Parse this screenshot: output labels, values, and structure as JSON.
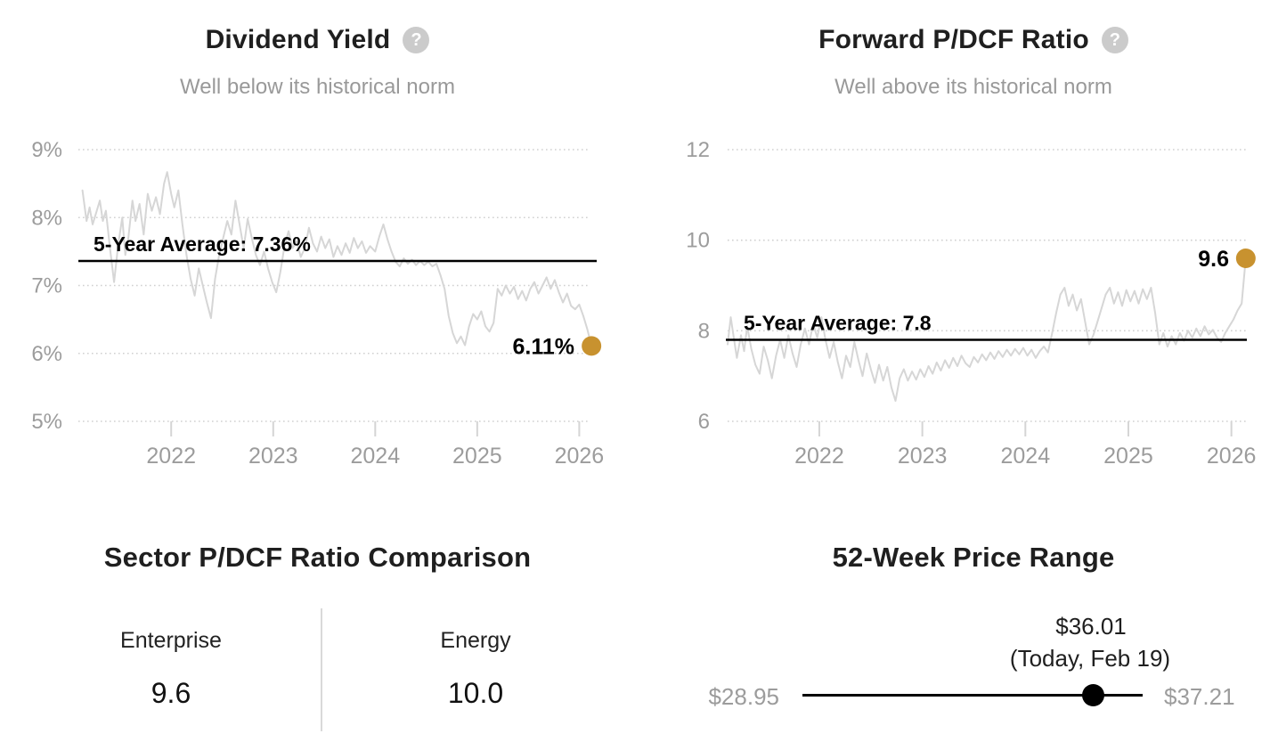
{
  "colors": {
    "accent_gold": "#C8922F",
    "series_gray": "#d6d6d6",
    "grid_gray": "#d0d0d0",
    "tick_gray": "#d5d5d5",
    "axis_text": "#9c9c9c",
    "annotation_black": "#000000"
  },
  "chart_data": [
    {
      "type": "line",
      "title": "Dividend Yield",
      "help_icon": "?",
      "subtitle": "Well below its historical norm",
      "average_label": "5-Year Average: 7.36%",
      "average_value": 7.36,
      "endpoint_label": "6.11%",
      "endpoint_value": 6.11,
      "ylim": [
        5,
        9
      ],
      "xlim": [
        2021.09,
        2026.11
      ],
      "y_ticks": [
        {
          "label": "9%",
          "value": 9
        },
        {
          "label": "8%",
          "value": 8
        },
        {
          "label": "7%",
          "value": 7
        },
        {
          "label": "6%",
          "value": 6
        },
        {
          "label": "5%",
          "value": 5
        }
      ],
      "x_ticks": [
        {
          "label": "2022",
          "value": 2022
        },
        {
          "label": "2023",
          "value": 2023
        },
        {
          "label": "2024",
          "value": 2024
        },
        {
          "label": "2025",
          "value": 2025
        },
        {
          "label": "2026",
          "value": 2026
        }
      ],
      "series": [
        [
          2021.13,
          8.4
        ],
        [
          2021.17,
          7.95
        ],
        [
          2021.2,
          8.15
        ],
        [
          2021.23,
          7.9
        ],
        [
          2021.26,
          8.05
        ],
        [
          2021.3,
          8.25
        ],
        [
          2021.33,
          7.95
        ],
        [
          2021.36,
          8.1
        ],
        [
          2021.4,
          7.55
        ],
        [
          2021.44,
          7.05
        ],
        [
          2021.48,
          7.6
        ],
        [
          2021.52,
          8.0
        ],
        [
          2021.55,
          7.45
        ],
        [
          2021.58,
          7.7
        ],
        [
          2021.62,
          8.25
        ],
        [
          2021.65,
          7.95
        ],
        [
          2021.69,
          8.2
        ],
        [
          2021.73,
          7.75
        ],
        [
          2021.77,
          8.35
        ],
        [
          2021.81,
          8.1
        ],
        [
          2021.85,
          8.3
        ],
        [
          2021.89,
          8.05
        ],
        [
          2021.93,
          8.5
        ],
        [
          2021.96,
          8.67
        ],
        [
          2022.0,
          8.35
        ],
        [
          2022.03,
          8.15
        ],
        [
          2022.07,
          8.4
        ],
        [
          2022.11,
          7.9
        ],
        [
          2022.15,
          7.45
        ],
        [
          2022.19,
          7.1
        ],
        [
          2022.23,
          6.85
        ],
        [
          2022.27,
          7.25
        ],
        [
          2022.31,
          7.0
        ],
        [
          2022.35,
          6.75
        ],
        [
          2022.39,
          6.52
        ],
        [
          2022.43,
          7.1
        ],
        [
          2022.47,
          7.45
        ],
        [
          2022.51,
          7.7
        ],
        [
          2022.55,
          7.95
        ],
        [
          2022.59,
          7.75
        ],
        [
          2022.63,
          8.25
        ],
        [
          2022.67,
          7.9
        ],
        [
          2022.71,
          7.55
        ],
        [
          2022.75,
          7.98
        ],
        [
          2022.79,
          7.7
        ],
        [
          2022.83,
          7.45
        ],
        [
          2022.87,
          7.3
        ],
        [
          2022.91,
          7.5
        ],
        [
          2022.95,
          7.25
        ],
        [
          2022.99,
          7.05
        ],
        [
          2023.03,
          6.9
        ],
        [
          2023.07,
          7.2
        ],
        [
          2023.11,
          7.58
        ],
        [
          2023.15,
          7.8
        ],
        [
          2023.19,
          7.55
        ],
        [
          2023.23,
          7.65
        ],
        [
          2023.27,
          7.42
        ],
        [
          2023.31,
          7.55
        ],
        [
          2023.35,
          7.85
        ],
        [
          2023.39,
          7.62
        ],
        [
          2023.43,
          7.5
        ],
        [
          2023.47,
          7.72
        ],
        [
          2023.51,
          7.55
        ],
        [
          2023.55,
          7.68
        ],
        [
          2023.59,
          7.42
        ],
        [
          2023.63,
          7.58
        ],
        [
          2023.67,
          7.45
        ],
        [
          2023.71,
          7.62
        ],
        [
          2023.75,
          7.48
        ],
        [
          2023.79,
          7.7
        ],
        [
          2023.83,
          7.55
        ],
        [
          2023.87,
          7.65
        ],
        [
          2023.91,
          7.48
        ],
        [
          2023.95,
          7.58
        ],
        [
          2024.0,
          7.5
        ],
        [
          2024.04,
          7.72
        ],
        [
          2024.08,
          7.9
        ],
        [
          2024.12,
          7.68
        ],
        [
          2024.16,
          7.5
        ],
        [
          2024.2,
          7.35
        ],
        [
          2024.24,
          7.28
        ],
        [
          2024.28,
          7.4
        ],
        [
          2024.32,
          7.32
        ],
        [
          2024.36,
          7.38
        ],
        [
          2024.4,
          7.3
        ],
        [
          2024.44,
          7.36
        ],
        [
          2024.48,
          7.3
        ],
        [
          2024.52,
          7.35
        ],
        [
          2024.56,
          7.28
        ],
        [
          2024.6,
          7.32
        ],
        [
          2024.64,
          7.15
        ],
        [
          2024.68,
          6.95
        ],
        [
          2024.72,
          6.55
        ],
        [
          2024.76,
          6.3
        ],
        [
          2024.8,
          6.15
        ],
        [
          2024.84,
          6.25
        ],
        [
          2024.88,
          6.12
        ],
        [
          2024.92,
          6.4
        ],
        [
          2024.96,
          6.58
        ],
        [
          2025.0,
          6.5
        ],
        [
          2025.04,
          6.62
        ],
        [
          2025.08,
          6.4
        ],
        [
          2025.12,
          6.32
        ],
        [
          2025.16,
          6.45
        ],
        [
          2025.2,
          6.95
        ],
        [
          2025.24,
          6.85
        ],
        [
          2025.28,
          7.0
        ],
        [
          2025.32,
          6.88
        ],
        [
          2025.36,
          6.98
        ],
        [
          2025.4,
          6.8
        ],
        [
          2025.44,
          6.92
        ],
        [
          2025.48,
          6.78
        ],
        [
          2025.52,
          6.95
        ],
        [
          2025.56,
          7.05
        ],
        [
          2025.6,
          6.88
        ],
        [
          2025.64,
          7.0
        ],
        [
          2025.68,
          7.12
        ],
        [
          2025.72,
          6.95
        ],
        [
          2025.76,
          7.08
        ],
        [
          2025.8,
          6.9
        ],
        [
          2025.84,
          6.75
        ],
        [
          2025.88,
          6.88
        ],
        [
          2025.92,
          6.7
        ],
        [
          2025.96,
          6.65
        ],
        [
          2026.0,
          6.72
        ],
        [
          2026.04,
          6.55
        ],
        [
          2026.08,
          6.35
        ],
        [
          2026.12,
          6.11
        ]
      ]
    },
    {
      "type": "line",
      "title": "Forward P/DCF Ratio",
      "help_icon": "?",
      "subtitle": "Well above its historical norm",
      "average_label": "5-Year Average: 7.8",
      "average_value": 7.8,
      "endpoint_label": "9.6",
      "endpoint_value": 9.6,
      "ylim": [
        6,
        12
      ],
      "xlim": [
        2021.11,
        2026.15
      ],
      "y_ticks": [
        {
          "label": "12",
          "value": 12
        },
        {
          "label": "10",
          "value": 10
        },
        {
          "label": "8",
          "value": 8
        },
        {
          "label": "6",
          "value": 6
        }
      ],
      "x_ticks": [
        {
          "label": "2022",
          "value": 2022
        },
        {
          "label": "2023",
          "value": 2023
        },
        {
          "label": "2024",
          "value": 2024
        },
        {
          "label": "2025",
          "value": 2025
        },
        {
          "label": "2026",
          "value": 2026
        }
      ],
      "series": [
        [
          2021.11,
          7.7
        ],
        [
          2021.14,
          8.3
        ],
        [
          2021.17,
          7.85
        ],
        [
          2021.2,
          7.4
        ],
        [
          2021.24,
          7.9
        ],
        [
          2021.27,
          7.55
        ],
        [
          2021.3,
          8.1
        ],
        [
          2021.34,
          7.6
        ],
        [
          2021.38,
          7.25
        ],
        [
          2021.42,
          7.05
        ],
        [
          2021.46,
          7.65
        ],
        [
          2021.5,
          7.35
        ],
        [
          2021.54,
          6.95
        ],
        [
          2021.58,
          7.45
        ],
        [
          2021.62,
          7.8
        ],
        [
          2021.66,
          7.4
        ],
        [
          2021.7,
          7.9
        ],
        [
          2021.74,
          7.5
        ],
        [
          2021.78,
          7.2
        ],
        [
          2021.82,
          7.7
        ],
        [
          2021.86,
          8.05
        ],
        [
          2021.9,
          7.7
        ],
        [
          2021.94,
          8.15
        ],
        [
          2021.98,
          7.85
        ],
        [
          2022.02,
          8.3
        ],
        [
          2022.06,
          7.8
        ],
        [
          2022.1,
          7.4
        ],
        [
          2022.14,
          7.75
        ],
        [
          2022.18,
          7.3
        ],
        [
          2022.22,
          6.95
        ],
        [
          2022.26,
          7.45
        ],
        [
          2022.3,
          7.2
        ],
        [
          2022.34,
          7.75
        ],
        [
          2022.38,
          7.35
        ],
        [
          2022.42,
          7.0
        ],
        [
          2022.46,
          7.5
        ],
        [
          2022.5,
          7.15
        ],
        [
          2022.54,
          6.85
        ],
        [
          2022.58,
          7.25
        ],
        [
          2022.62,
          6.9
        ],
        [
          2022.66,
          7.2
        ],
        [
          2022.7,
          6.75
        ],
        [
          2022.74,
          6.45
        ],
        [
          2022.78,
          6.95
        ],
        [
          2022.82,
          7.15
        ],
        [
          2022.86,
          6.9
        ],
        [
          2022.9,
          7.1
        ],
        [
          2022.94,
          6.92
        ],
        [
          2022.98,
          7.15
        ],
        [
          2023.02,
          6.98
        ],
        [
          2023.06,
          7.22
        ],
        [
          2023.1,
          7.05
        ],
        [
          2023.14,
          7.3
        ],
        [
          2023.18,
          7.12
        ],
        [
          2023.22,
          7.35
        ],
        [
          2023.26,
          7.18
        ],
        [
          2023.3,
          7.4
        ],
        [
          2023.34,
          7.22
        ],
        [
          2023.38,
          7.45
        ],
        [
          2023.42,
          7.28
        ],
        [
          2023.46,
          7.2
        ],
        [
          2023.5,
          7.42
        ],
        [
          2023.54,
          7.3
        ],
        [
          2023.58,
          7.48
        ],
        [
          2023.62,
          7.35
        ],
        [
          2023.66,
          7.52
        ],
        [
          2023.7,
          7.38
        ],
        [
          2023.74,
          7.55
        ],
        [
          2023.78,
          7.42
        ],
        [
          2023.82,
          7.58
        ],
        [
          2023.86,
          7.45
        ],
        [
          2023.9,
          7.6
        ],
        [
          2023.94,
          7.48
        ],
        [
          2023.98,
          7.62
        ],
        [
          2024.02,
          7.45
        ],
        [
          2024.06,
          7.58
        ],
        [
          2024.1,
          7.4
        ],
        [
          2024.14,
          7.55
        ],
        [
          2024.18,
          7.65
        ],
        [
          2024.22,
          7.52
        ],
        [
          2024.26,
          7.95
        ],
        [
          2024.3,
          8.4
        ],
        [
          2024.34,
          8.8
        ],
        [
          2024.38,
          8.95
        ],
        [
          2024.42,
          8.55
        ],
        [
          2024.46,
          8.8
        ],
        [
          2024.5,
          8.45
        ],
        [
          2024.54,
          8.7
        ],
        [
          2024.58,
          8.2
        ],
        [
          2024.62,
          7.7
        ],
        [
          2024.66,
          7.9
        ],
        [
          2024.7,
          8.2
        ],
        [
          2024.74,
          8.5
        ],
        [
          2024.78,
          8.8
        ],
        [
          2024.82,
          8.95
        ],
        [
          2024.86,
          8.6
        ],
        [
          2024.9,
          8.85
        ],
        [
          2024.94,
          8.55
        ],
        [
          2024.98,
          8.9
        ],
        [
          2025.02,
          8.65
        ],
        [
          2025.06,
          8.88
        ],
        [
          2025.1,
          8.6
        ],
        [
          2025.14,
          8.92
        ],
        [
          2025.18,
          8.7
        ],
        [
          2025.22,
          8.95
        ],
        [
          2025.26,
          8.4
        ],
        [
          2025.3,
          7.7
        ],
        [
          2025.34,
          7.95
        ],
        [
          2025.38,
          7.65
        ],
        [
          2025.42,
          7.88
        ],
        [
          2025.46,
          7.7
        ],
        [
          2025.5,
          7.95
        ],
        [
          2025.54,
          7.78
        ],
        [
          2025.58,
          8.0
        ],
        [
          2025.62,
          7.85
        ],
        [
          2025.66,
          8.05
        ],
        [
          2025.7,
          7.88
        ],
        [
          2025.74,
          8.1
        ],
        [
          2025.78,
          7.92
        ],
        [
          2025.82,
          8.02
        ],
        [
          2025.86,
          7.85
        ],
        [
          2025.9,
          7.75
        ],
        [
          2025.94,
          7.95
        ],
        [
          2025.98,
          8.1
        ],
        [
          2026.02,
          8.25
        ],
        [
          2026.06,
          8.45
        ],
        [
          2026.1,
          8.6
        ],
        [
          2026.12,
          9.1
        ],
        [
          2026.14,
          9.6
        ]
      ]
    },
    {
      "type": "table",
      "title": "Sector P/DCF Ratio Comparison",
      "columns": [
        {
          "label": "Enterprise",
          "value": "9.6"
        },
        {
          "label": "Energy",
          "value": "10.0"
        }
      ]
    },
    {
      "type": "range",
      "title": "52-Week Price Range",
      "low_label": "$28.95",
      "high_label": "$37.21",
      "current_label": "$36.01",
      "current_sublabel": "(Today, Feb 19)",
      "low": 28.95,
      "high": 37.21,
      "current": 36.01
    }
  ]
}
